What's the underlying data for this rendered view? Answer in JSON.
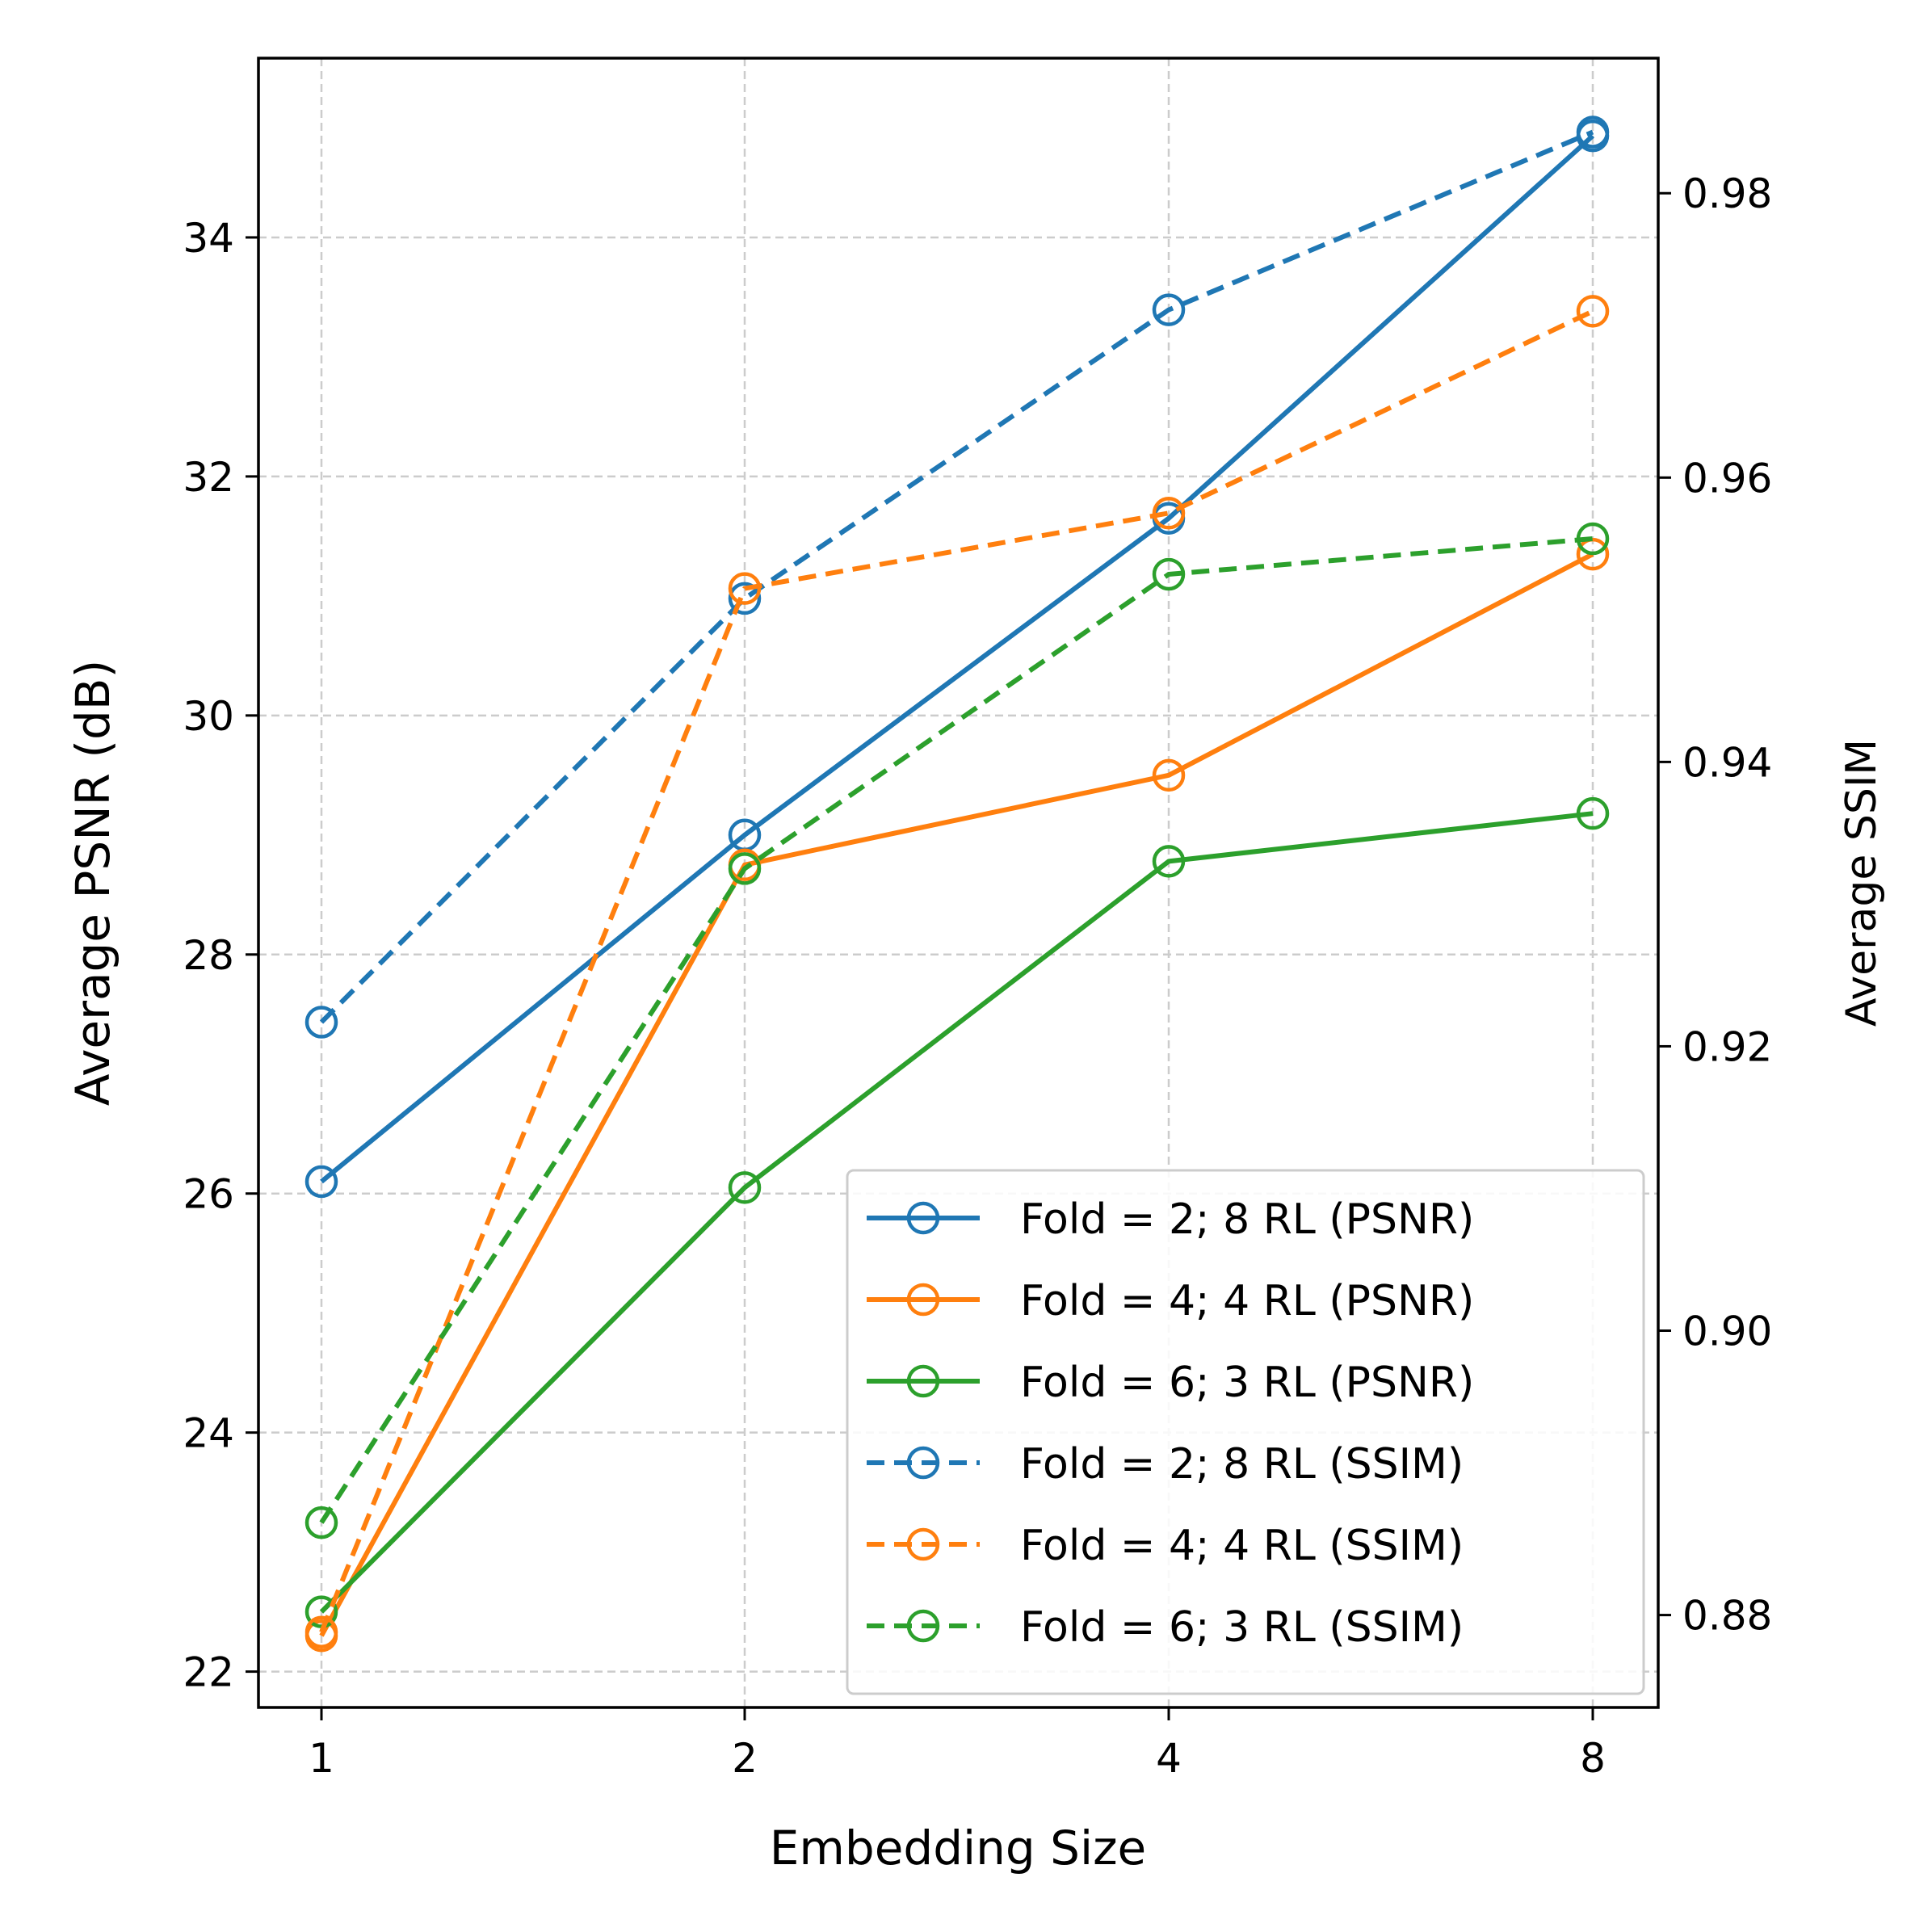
{
  "chart_data": {
    "type": "line",
    "categories": [
      "1",
      "2",
      "4",
      "8"
    ],
    "xlabel": "Embedding Size",
    "ylabel_left": "Average PSNR (dB)",
    "ylabel_right": "Average SSIM",
    "ylim_left": [
      21.7,
      35.5
    ],
    "ylim_right": [
      0.8735,
      0.9895
    ],
    "yticks_left": [
      "22",
      "24",
      "26",
      "28",
      "30",
      "32",
      "34"
    ],
    "yticks_right": [
      "0.88",
      "0.90",
      "0.92",
      "0.94",
      "0.96",
      "0.98"
    ],
    "grid": true,
    "legend_position": "lower-right",
    "series": [
      {
        "name": "Fold = 2; 8 RL (PSNR)",
        "axis": "left",
        "style": "solid",
        "color": "#1f77b4",
        "values": [
          26.1,
          29.0,
          31.65,
          34.85
        ]
      },
      {
        "name": "Fold = 4; 4 RL (PSNR)",
        "axis": "left",
        "style": "solid",
        "color": "#ff7f0e",
        "values": [
          22.3,
          28.75,
          29.5,
          31.35
        ]
      },
      {
        "name": "Fold = 6; 3 RL (PSNR)",
        "axis": "left",
        "style": "solid",
        "color": "#2ca02c",
        "values": [
          22.5,
          26.05,
          28.78,
          29.18
        ]
      },
      {
        "name": "Fold = 2; 8 RL (SSIM)",
        "axis": "right",
        "style": "dashed",
        "color": "#1f77b4",
        "values": [
          0.9217,
          0.9515,
          0.9718,
          0.9843
        ]
      },
      {
        "name": "Fold = 4; 4 RL (SSIM)",
        "axis": "right",
        "style": "dashed",
        "color": "#ff7f0e",
        "values": [
          0.8788,
          0.9522,
          0.9575,
          0.9717
        ]
      },
      {
        "name": "Fold = 6; 3 RL (SSIM)",
        "axis": "right",
        "style": "dashed",
        "color": "#2ca02c",
        "values": [
          0.8865,
          0.9325,
          0.9532,
          0.9557
        ]
      }
    ]
  }
}
